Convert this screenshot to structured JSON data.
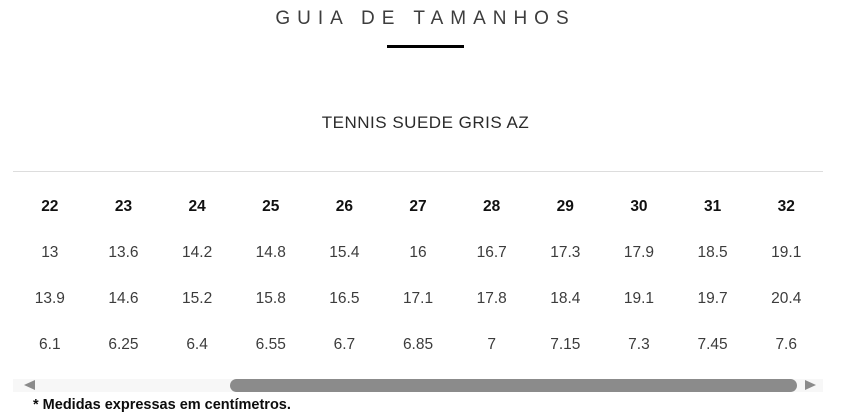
{
  "page": {
    "title": "GUIA DE TAMANHOS",
    "product_name": "TENNIS SUEDE GRIS AZ",
    "footnote": "* Medidas expressas em centímetros."
  },
  "size_table": {
    "header_sizes": [
      "22",
      "23",
      "24",
      "25",
      "26",
      "27",
      "28",
      "29",
      "30",
      "31",
      "32"
    ],
    "rows": [
      [
        "13",
        "13.6",
        "14.2",
        "14.8",
        "15.4",
        "16",
        "16.7",
        "17.3",
        "17.9",
        "18.5",
        "19.1"
      ],
      [
        "13.9",
        "14.6",
        "15.2",
        "15.8",
        "16.5",
        "17.1",
        "17.8",
        "18.4",
        "19.1",
        "19.7",
        "20.4"
      ],
      [
        "6.1",
        "6.25",
        "6.4",
        "6.55",
        "6.7",
        "6.85",
        "7",
        "7.15",
        "7.3",
        "7.45",
        "7.6"
      ]
    ],
    "unit_note": "centímetros"
  },
  "scrollbar": {
    "orientation": "horizontal",
    "left_arrow_icon": "scroll-left-arrow",
    "right_arrow_icon": "scroll-right-arrow"
  },
  "colors": {
    "title_text": "#3d3d3d",
    "underline": "#000000",
    "divider": "#dddddd",
    "header_text": "#111111",
    "body_text": "#3c3c3c",
    "scrollbar_track": "#f7f7f7",
    "scrollbar_thumb": "#8b8b8b",
    "footnote_text": "#0d0d0d"
  }
}
